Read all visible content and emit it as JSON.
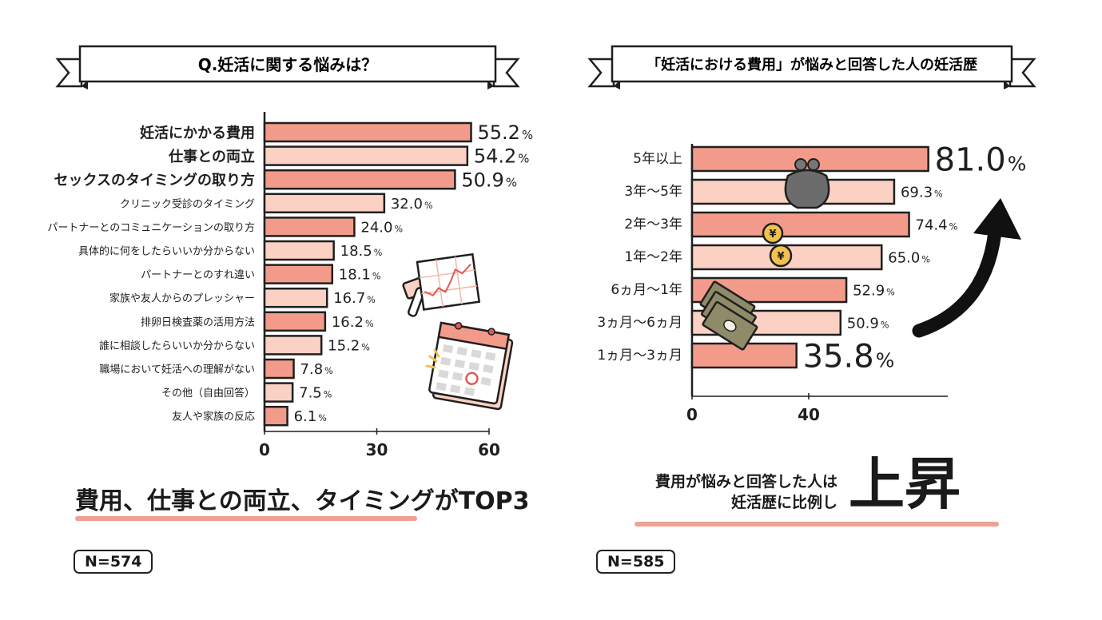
{
  "colors": {
    "bar_dark": "#f39b8a",
    "bar_light": "#fbd1c3",
    "outline": "#1f1f1f",
    "underline": "#efa193"
  },
  "left": {
    "title": "Q.妊活に関する悩みは？",
    "headline": "費用、仕事との両立、タイミングがTOP3",
    "n_label": "N=574",
    "icons": [
      "thermometer-icon",
      "ovulation-chart-icon",
      "calendar-icon"
    ]
  },
  "right": {
    "title": "「妊活における費用」が悩みと回答した人の妊活歴",
    "caption_lines": [
      "費用が悩みと回答した人は",
      "妊活歴に比例し"
    ],
    "big_word": "上昇",
    "n_label": "N=585",
    "icons": [
      "coin-purse-icon",
      "yen-coin-icon",
      "banknotes-icon",
      "up-arrow-icon"
    ]
  },
  "chart_data": [
    {
      "type": "bar",
      "orientation": "horizontal",
      "title": "Q.妊活に関する悩みは？",
      "categories": [
        "妊活にかかる費用",
        "仕事との両立",
        "セックスのタイミングの取り方",
        "クリニック受診のタイミング",
        "パートナーとのコミュニケーションの取り方",
        "具体的に何をしたらいいか分からない",
        "パートナーとのすれ違い",
        "家族や友人からのプレッシャー",
        "排卵日検査薬の活用方法",
        "誰に相談したらいいか分からない",
        "職場において妊活への理解がない",
        "その他（自由回答）",
        "友人や家族の反応"
      ],
      "values": [
        55.2,
        54.2,
        50.9,
        32.0,
        24.0,
        18.5,
        18.1,
        16.7,
        16.2,
        15.2,
        7.8,
        7.5,
        6.1
      ],
      "value_labels": [
        "55.2",
        "54.2",
        "50.9",
        "32.0",
        "24.0",
        "18.5",
        "18.1",
        "16.7",
        "16.2",
        "15.2",
        "7.8",
        "7.5",
        "6.1"
      ],
      "unit": "%",
      "xlim": [
        0,
        60
      ],
      "xticks": [
        0,
        30,
        60
      ],
      "xtick_labels": [
        "0",
        "30",
        "60"
      ],
      "emphasized_top": 3,
      "grid": false,
      "legend": "none"
    },
    {
      "type": "bar",
      "orientation": "horizontal",
      "title": "「妊活における費用」が悩みと回答した人の妊活歴",
      "categories": [
        "5年以上",
        "3年〜5年",
        "2年〜3年",
        "1年〜2年",
        "6ヵ月〜1年",
        "3ヵ月〜6ヵ月",
        "1ヵ月〜3ヵ月"
      ],
      "values": [
        81.0,
        69.3,
        74.4,
        65.0,
        52.9,
        50.9,
        35.8
      ],
      "value_labels": [
        "81.0",
        "69.3",
        "74.4",
        "65.0",
        "52.9",
        "50.9",
        "35.8"
      ],
      "unit": "%",
      "xlim": [
        0,
        80
      ],
      "xticks": [
        0,
        40
      ],
      "xtick_labels": [
        "0",
        "40"
      ],
      "emphasized": [
        0,
        6
      ],
      "grid": false,
      "legend": "none"
    }
  ]
}
